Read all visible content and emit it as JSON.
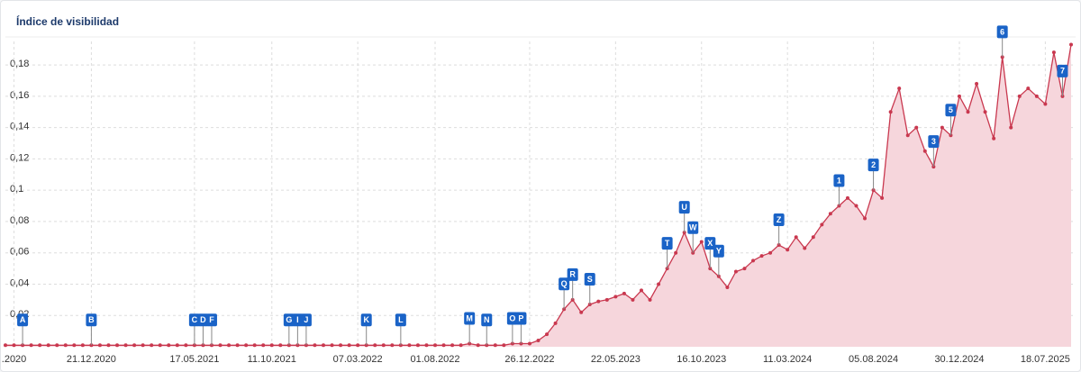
{
  "chart_data": {
    "type": "area",
    "title": "Índice de visibilidad",
    "categories": [
      null,
      ".2020",
      null,
      null,
      null,
      null,
      null,
      null,
      null,
      null,
      "21.12.2020",
      null,
      null,
      null,
      null,
      null,
      null,
      null,
      null,
      null,
      null,
      null,
      "17.05.2021",
      null,
      null,
      null,
      null,
      null,
      null,
      null,
      null,
      "11.10.2021",
      null,
      null,
      null,
      null,
      null,
      null,
      null,
      null,
      null,
      "07.03.2022",
      null,
      null,
      null,
      null,
      null,
      null,
      null,
      null,
      "01.08.2022",
      null,
      null,
      null,
      null,
      null,
      null,
      null,
      null,
      null,
      null,
      "26.12.2022",
      null,
      null,
      null,
      null,
      null,
      null,
      null,
      null,
      null,
      "22.05.2023",
      null,
      null,
      null,
      null,
      null,
      null,
      null,
      null,
      null,
      "16.10.2023",
      null,
      null,
      null,
      null,
      null,
      null,
      null,
      null,
      null,
      "11.03.2024",
      null,
      null,
      null,
      null,
      null,
      null,
      null,
      null,
      null,
      "05.08.2024",
      null,
      null,
      null,
      null,
      null,
      null,
      null,
      null,
      null,
      "30.12.2024",
      null,
      null,
      null,
      null,
      null,
      null,
      null,
      null,
      null,
      "18.07.2025",
      null,
      null,
      null
    ],
    "values": [
      0.001,
      0.001,
      0.001,
      0.001,
      0.001,
      0.001,
      0.001,
      0.001,
      0.001,
      0.001,
      0.001,
      0.001,
      0.001,
      0.001,
      0.001,
      0.001,
      0.001,
      0.001,
      0.001,
      0.001,
      0.001,
      0.001,
      0.001,
      0.001,
      0.001,
      0.001,
      0.001,
      0.001,
      0.001,
      0.001,
      0.001,
      0.001,
      0.001,
      0.001,
      0.001,
      0.001,
      0.001,
      0.001,
      0.001,
      0.001,
      0.001,
      0.001,
      0.001,
      0.001,
      0.001,
      0.001,
      0.001,
      0.001,
      0.001,
      0.001,
      0.001,
      0.001,
      0.001,
      0.001,
      0.002,
      0.001,
      0.001,
      0.001,
      0.001,
      0.002,
      0.002,
      0.002,
      0.004,
      0.008,
      0.015,
      0.024,
      0.03,
      0.022,
      0.027,
      0.029,
      0.03,
      0.032,
      0.034,
      0.03,
      0.036,
      0.03,
      0.04,
      0.05,
      0.06,
      0.073,
      0.06,
      0.067,
      0.05,
      0.045,
      0.038,
      0.048,
      0.05,
      0.055,
      0.058,
      0.06,
      0.065,
      0.062,
      0.07,
      0.063,
      0.07,
      0.078,
      0.085,
      0.09,
      0.095,
      0.09,
      0.082,
      0.1,
      0.095,
      0.15,
      0.165,
      0.135,
      0.14,
      0.125,
      0.115,
      0.14,
      0.135,
      0.16,
      0.15,
      0.168,
      0.15,
      0.133,
      0.185,
      0.14,
      0.16,
      0.165,
      0.16,
      0.155,
      0.188,
      0.16,
      0.193
    ],
    "color": "#c9384f",
    "fill": "#f6d6dc",
    "ylim": [
      0,
      0.195
    ],
    "yticks": [
      {
        "value": 0.02,
        "label": "0,02"
      },
      {
        "value": 0.04,
        "label": "0,04"
      },
      {
        "value": 0.06,
        "label": "0,06"
      },
      {
        "value": 0.08,
        "label": "0,08"
      },
      {
        "value": 0.1,
        "label": "0,1"
      },
      {
        "value": 0.12,
        "label": "0,12"
      },
      {
        "value": 0.14,
        "label": "0,14"
      },
      {
        "value": 0.16,
        "label": "0,16"
      },
      {
        "value": 0.18,
        "label": "0,18"
      }
    ],
    "grid": true,
    "events": [
      {
        "label": "A",
        "index": 2
      },
      {
        "label": "B",
        "index": 10
      },
      {
        "label": "C",
        "index": 22
      },
      {
        "label": "D",
        "index": 23
      },
      {
        "label": "F",
        "index": 24
      },
      {
        "label": "G",
        "index": 33
      },
      {
        "label": "I",
        "index": 34
      },
      {
        "label": "J",
        "index": 35
      },
      {
        "label": "K",
        "index": 42
      },
      {
        "label": "L",
        "index": 46
      },
      {
        "label": "M",
        "index": 54
      },
      {
        "label": "N",
        "index": 56
      },
      {
        "label": "O",
        "index": 59
      },
      {
        "label": "P",
        "index": 60
      },
      {
        "label": "Q",
        "index": 65
      },
      {
        "label": "R",
        "index": 66
      },
      {
        "label": "S",
        "index": 68
      },
      {
        "label": "T",
        "index": 77
      },
      {
        "label": "U",
        "index": 79
      },
      {
        "label": "W",
        "index": 80
      },
      {
        "label": "X",
        "index": 82
      },
      {
        "label": "Y",
        "index": 83
      },
      {
        "label": "Z",
        "index": 90
      },
      {
        "label": "1",
        "index": 97
      },
      {
        "label": "2",
        "index": 101
      },
      {
        "label": "3",
        "index": 108
      },
      {
        "label": "5",
        "index": 110
      },
      {
        "label": "6",
        "index": 116
      },
      {
        "label": "7",
        "index": 123
      }
    ]
  }
}
